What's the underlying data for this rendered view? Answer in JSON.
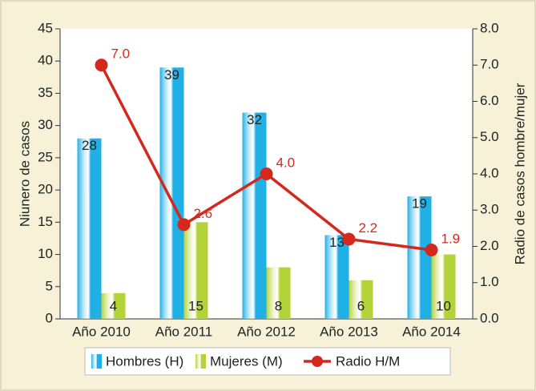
{
  "chart_data": {
    "type": "bar_line",
    "categories": [
      "Año 2010",
      "Año 2011",
      "Año 2012",
      "Año 2013",
      "Año 2014"
    ],
    "series": [
      {
        "name": "Hombres (H)",
        "color": "#1fb0e6",
        "values": [
          28,
          39,
          32,
          13,
          19
        ]
      },
      {
        "name": "Mujeres (M)",
        "color": "#b4d339",
        "values": [
          4,
          15,
          8,
          6,
          10
        ]
      },
      {
        "name": "Radio H/M",
        "color": "#d4281c",
        "axis": "y2",
        "values": [
          7.0,
          2.6,
          4.0,
          2.2,
          1.9
        ],
        "value_labels": [
          "7.0",
          "2.6",
          "4.0",
          "2.2",
          "1.9"
        ]
      }
    ],
    "ylabel": "Niunero de casos",
    "y2label": "Radio de casos hombre/mujer",
    "ylim": [
      0,
      45
    ],
    "yticks": [
      0,
      5,
      10,
      15,
      20,
      25,
      30,
      35,
      40,
      45
    ],
    "y2lim": [
      0,
      8
    ],
    "y2ticks": [
      {
        "value": 0,
        "label": "0.0"
      },
      {
        "value": 1,
        "label": "1.0"
      },
      {
        "value": 2,
        "label": "2.0"
      },
      {
        "value": 3,
        "label": "3.0"
      },
      {
        "value": 4,
        "label": "4.0"
      },
      {
        "value": 5,
        "label": "5.0"
      },
      {
        "value": 6,
        "label": "6.0"
      },
      {
        "value": 7,
        "label": "7.0"
      },
      {
        "value": 8,
        "label": "8.0"
      }
    ],
    "grid": false,
    "legend": "bottom"
  }
}
